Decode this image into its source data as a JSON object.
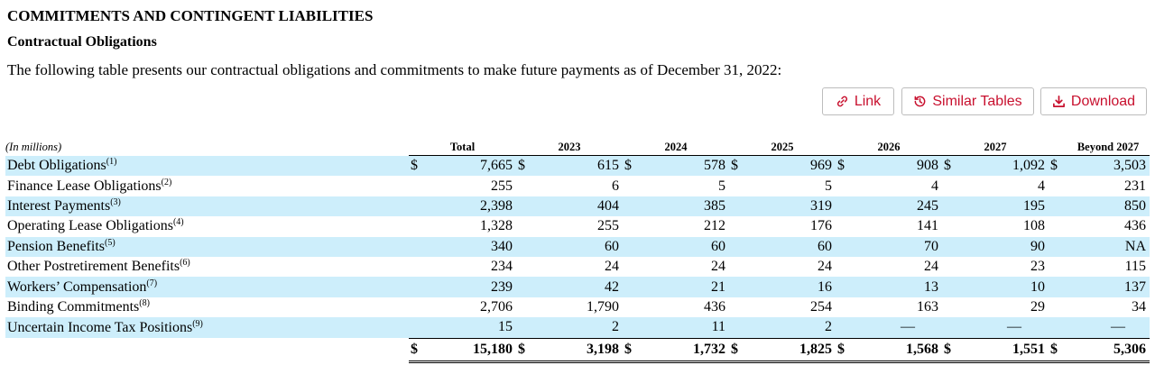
{
  "section_title": "COMMITMENTS AND CONTINGENT LIABILITIES",
  "subsection_title": "Contractual Obligations",
  "intro": "The following table presents our contractual obligations and commitments to make future payments as of December 31, 2022:",
  "toolbar": {
    "link_label": "Link",
    "similar_label": "Similar Tables",
    "download_label": "Download",
    "accent": "#c8102e"
  },
  "table": {
    "units": "(In millions)",
    "columns": [
      "Total",
      "2023",
      "2024",
      "2025",
      "2026",
      "2027",
      "Beyond 2027"
    ],
    "rows": [
      {
        "label": "Debt Obligations",
        "note": "(1)",
        "dollar": true,
        "values": [
          "7,665",
          "615",
          "578",
          "969",
          "908",
          "1,092",
          "3,503"
        ]
      },
      {
        "label": "Finance Lease Obligations",
        "note": "(2)",
        "dollar": false,
        "values": [
          "255",
          "6",
          "5",
          "5",
          "4",
          "4",
          "231"
        ]
      },
      {
        "label": "Interest Payments",
        "note": "(3)",
        "dollar": false,
        "values": [
          "2,398",
          "404",
          "385",
          "319",
          "245",
          "195",
          "850"
        ]
      },
      {
        "label": "Operating Lease Obligations",
        "note": "(4)",
        "dollar": false,
        "values": [
          "1,328",
          "255",
          "212",
          "176",
          "141",
          "108",
          "436"
        ]
      },
      {
        "label": "Pension Benefits",
        "note": "(5)",
        "dollar": false,
        "values": [
          "340",
          "60",
          "60",
          "60",
          "70",
          "90",
          "NA"
        ]
      },
      {
        "label": "Other Postretirement Benefits",
        "note": "(6)",
        "dollar": false,
        "values": [
          "234",
          "24",
          "24",
          "24",
          "24",
          "23",
          "115"
        ]
      },
      {
        "label": "Workers’ Compensation",
        "note": "(7)",
        "dollar": false,
        "values": [
          "239",
          "42",
          "21",
          "16",
          "13",
          "10",
          "137"
        ]
      },
      {
        "label": "Binding Commitments",
        "note": "(8)",
        "dollar": false,
        "values": [
          "2,706",
          "1,790",
          "436",
          "254",
          "163",
          "29",
          "34"
        ]
      },
      {
        "label": "Uncertain Income Tax Positions",
        "note": "(9)",
        "dollar": false,
        "values": [
          "15",
          "2",
          "11",
          "2",
          "—",
          "—",
          "—"
        ]
      }
    ],
    "total": {
      "dollar": "$",
      "values": [
        "15,180",
        "3,198",
        "1,732",
        "1,825",
        "1,568",
        "1,551",
        "5,306"
      ]
    },
    "row_shade": "#cdeefb"
  }
}
